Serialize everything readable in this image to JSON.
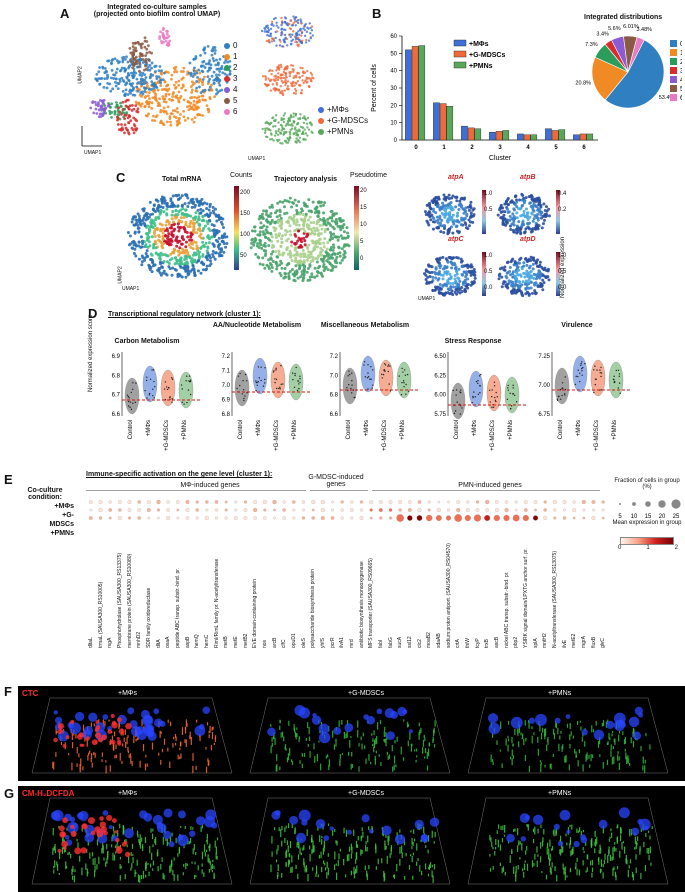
{
  "panels": {
    "a": {
      "letter": "A",
      "title_line1": "Integrated co-culture samples",
      "title_line2": "(projected onto biofilm control UMAP)",
      "umap1": "UMAP1",
      "umap2": "UMAP2",
      "clusters": [
        "0",
        "1",
        "2",
        "3",
        "4",
        "5",
        "6"
      ],
      "cluster_colors": [
        "#2f7fc1",
        "#f08a24",
        "#2a9d5a",
        "#d62d2d",
        "#8b5bd1",
        "#8a5a44",
        "#e77bc6"
      ],
      "conditions": [
        "+MΦs",
        "+G-MDSCs",
        "+PMNs"
      ],
      "condition_colors": [
        "#3f6fd6",
        "#ef6a3a",
        "#59a85a"
      ]
    },
    "b": {
      "letter": "B",
      "inset_title": "Integrated distributions"
    },
    "c": {
      "letter": "C",
      "total_mrna": "Total mRNA",
      "counts": "Counts",
      "trajectory": "Trajectory analysis",
      "pseudotime": "Pseudotime",
      "counts_ticks": [
        "200",
        "150",
        "100",
        "50"
      ],
      "pseudo_ticks": [
        "20",
        "15",
        "10",
        "5",
        "0"
      ],
      "genes": [
        "atpA",
        "atpB",
        "atpC",
        "atpD"
      ],
      "norm_expr": "Normalized expression",
      "atpA_ticks": [
        "1.0",
        "0.5"
      ],
      "atpB_ticks": [
        "0.4",
        "0.2"
      ],
      "atpC_ticks": [
        "1.0",
        "0.5",
        "0.0"
      ],
      "atpD_ticks": [
        "1.0",
        "0.5",
        "0.0"
      ],
      "umap1": "UMAP1",
      "umap2": "UMAP2"
    },
    "d": {
      "letter": "D",
      "title": "Transcriptional regulatory network (cluster 1):",
      "ylabel": "Normalized expression score",
      "groups": [
        "Control",
        "+MΦs",
        "+G-MDSCs",
        "+PMNs"
      ],
      "subpanels": [
        {
          "title": "Carbon Metabolism",
          "yticks": [
            "6.9",
            "6.8",
            "6.7",
            "6.6"
          ]
        },
        {
          "title": "AA/Nucleotide Metabolism",
          "yticks": [
            "7.2",
            "7.1",
            "7.0",
            "6.9",
            "6.8"
          ]
        },
        {
          "title": "Miscellaneous Metabolism",
          "yticks": [
            "7.2",
            "7.0",
            "6.8",
            "6.6"
          ]
        },
        {
          "title": "Stress Response",
          "yticks": [
            "6.50",
            "6.25",
            "6.00",
            "5.75"
          ]
        },
        {
          "title": "Virulence",
          "yticks": [
            "7.25",
            "7.00",
            "6.75"
          ]
        }
      ]
    },
    "e": {
      "letter": "E",
      "title": "Immune-specific activation on the gene level (cluster 1):",
      "cond_label": "Co-culture condition:",
      "rows": [
        "+MΦs",
        "+G-MDSCs",
        "+PMNs"
      ],
      "grp_mo": "MΦ-induced genes",
      "grp_gm": "G-MDSC-induced genes",
      "grp_pmn": "PMN-induced genes",
      "frac_title": "Fraction of cells in group (%)",
      "frac_ticks": [
        "5",
        "10",
        "15",
        "20",
        "25"
      ],
      "mean_title": "Mean expression in group",
      "mean_ticks": [
        "0",
        "1",
        "2"
      ],
      "genes": [
        "dltaL",
        "trmaL (SAUSA300_RS10005)",
        "rsgA",
        "Phosphohydrolase (SAUSA300_RS13375)",
        "membrane protein (SAUSA300_RS10080)",
        "mnhD2",
        "SDR family oxidoreductase",
        "dltA",
        "oxaA",
        "peptide ABC transp. substr.-bind. pr.",
        "aspB",
        "hemQ",
        "hemC",
        "RimI/RimL family pr. N-acetyltransferase",
        "metB",
        "metE",
        "metB2",
        "EVE domain-containing protein",
        "nos",
        "arcB",
        "clfC",
        "opuD1",
        "oleS",
        "polysaccharide biosynthesis protein",
        "yhfS",
        "pcrR",
        "ilvA1",
        "mrd",
        "antibiotic biosynthesis monooxygenase",
        "MFS transporter (SAUSA300_RS09665)",
        "fabI",
        "fabG",
        "sucA",
        "ssl12",
        "clc2",
        "moaB2",
        "sdaAB",
        "sodium:proton antiport. (SAUSA300_RS04570)",
        "crtA",
        "thiW",
        "tcyP",
        "trxB",
        "ascB",
        "nickel ABC transp. substr.-bind. pr.",
        "pbp2",
        "YSIRK signal domain/LPXTG anchor surf. pr.",
        "splA",
        "mntH2",
        "N-acetyltransferase (SAUSA300_RS13075)",
        "ilvE",
        "metE2",
        "mgrA",
        "fluxB",
        "glvC"
      ]
    },
    "f": {
      "letter": "F",
      "stain": "CTC",
      "conds": [
        "+MΦs",
        "+G-MDSCs",
        "+PMNs"
      ]
    },
    "g": {
      "letter": "G",
      "stain": "CM-H₂DCFDA",
      "conds": [
        "+MΦs",
        "+G-MDSCs",
        "+PMNs"
      ]
    }
  },
  "chart_data": {
    "type": "bar",
    "title": "",
    "categories": [
      "0",
      "1",
      "2",
      "3",
      "4",
      "5",
      "6"
    ],
    "series": [
      {
        "name": "+MΦs",
        "values": [
          52,
          21.5,
          8,
          4.5,
          3.5,
          6.5,
          3
        ]
      },
      {
        "name": "+G-MDSCs",
        "values": [
          54,
          21,
          7,
          5,
          3,
          5.5,
          3.5
        ]
      },
      {
        "name": "+PMNs",
        "values": [
          54.5,
          19.5,
          6.5,
          5.5,
          3,
          6,
          3.5
        ]
      }
    ],
    "series_colors": [
      "#3f6fd6",
      "#ef6a3a",
      "#59a85a"
    ],
    "xlabel": "Cluster",
    "ylabel": "Percent of cells",
    "ylim": [
      0,
      60
    ],
    "yticks": [
      "0",
      "10",
      "20",
      "30",
      "40",
      "50",
      "60"
    ],
    "pie": {
      "labels": [
        "0",
        "1",
        "2",
        "3",
        "4",
        "5",
        "6"
      ],
      "values": [
        53.4,
        20.8,
        7.3,
        3.4,
        5.6,
        6.01,
        3.48
      ],
      "value_labels": [
        "53.4%",
        "20.8%",
        "7.3%",
        "3.4%",
        "5.6%",
        "6.01%",
        "3.48%"
      ],
      "colors": [
        "#2f7fc1",
        "#f08a24",
        "#2a9d5a",
        "#d62d2d",
        "#8b5bd1",
        "#8a5a44",
        "#e77bc6"
      ]
    }
  }
}
